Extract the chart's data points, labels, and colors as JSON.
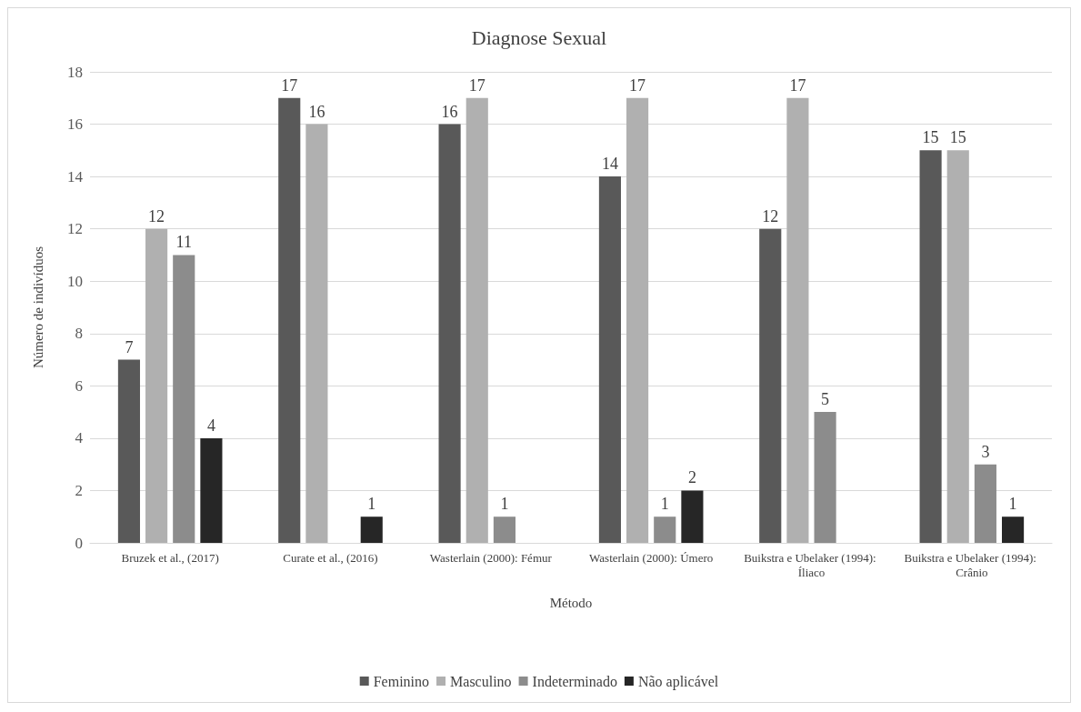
{
  "chart_data": {
    "type": "bar",
    "title": "Diagnose Sexual",
    "xlabel": "Método",
    "ylabel": "Número de indivíduos",
    "categories": [
      "Bruzek et al., (2017)",
      "Curate et al., (2016)",
      "Wasterlain (2000): Fémur",
      "Wasterlain (2000): Úmero",
      "Buikstra e Ubelaker (1994): Íliaco",
      "Buikstra e Ubelaker (1994): Crânio"
    ],
    "series": [
      {
        "name": "Feminino",
        "color": "#595959",
        "values": [
          7,
          17,
          16,
          14,
          12,
          15
        ]
      },
      {
        "name": "Masculino",
        "color": "#b0b0b0",
        "values": [
          12,
          16,
          17,
          17,
          17,
          15
        ]
      },
      {
        "name": "Indeterminado",
        "color": "#8c8c8c",
        "values": [
          11,
          null,
          1,
          1,
          5,
          3
        ]
      },
      {
        "name": "Não aplicável",
        "color": "#262626",
        "values": [
          4,
          1,
          null,
          2,
          null,
          1
        ]
      }
    ],
    "ylim": [
      0,
      18
    ],
    "yticks": [
      0,
      2,
      4,
      6,
      8,
      10,
      12,
      14,
      16,
      18
    ],
    "grid": "y",
    "legend": "bottom",
    "data_labels": true
  }
}
